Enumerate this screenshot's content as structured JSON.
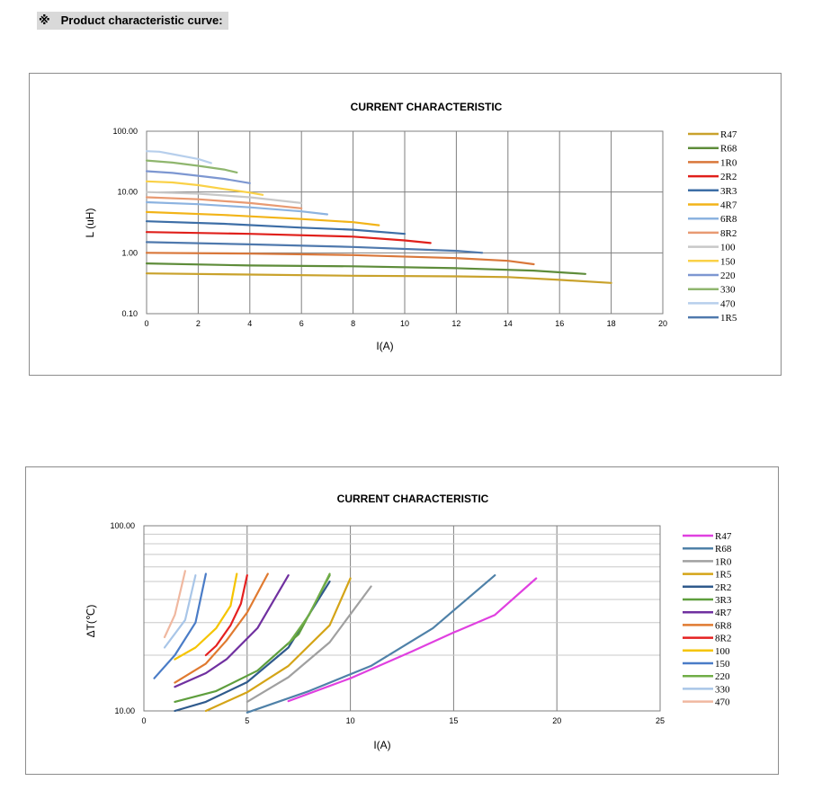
{
  "header": {
    "mark": "※",
    "title": "Product characteristic curve:"
  },
  "chart_data": [
    {
      "type": "line",
      "title": "CURRENT CHARACTERISTIC",
      "xlabel": "I(A)",
      "ylabel": "L (uH)",
      "xlim": [
        0,
        20
      ],
      "ylim": [
        0.1,
        100
      ],
      "yscale": "log",
      "x_ticks": [
        "0",
        "2",
        "4",
        "6",
        "8",
        "10",
        "12",
        "14",
        "16",
        "18",
        "20"
      ],
      "y_ticks": [
        "0.10",
        "1.00",
        "10.00",
        "100.00"
      ],
      "grid": true,
      "legend_position": "right",
      "series": [
        {
          "name": "R47",
          "color": "#c9a22c",
          "points": [
            [
              0,
              0.46
            ],
            [
              4,
              0.44
            ],
            [
              8,
              0.42
            ],
            [
              12,
              0.41
            ],
            [
              14,
              0.4
            ],
            [
              16,
              0.36
            ],
            [
              18,
              0.32
            ]
          ]
        },
        {
          "name": "R68",
          "color": "#5e8c3a",
          "points": [
            [
              0,
              0.67
            ],
            [
              4,
              0.62
            ],
            [
              8,
              0.6
            ],
            [
              12,
              0.56
            ],
            [
              15,
              0.51
            ],
            [
              17,
              0.45
            ]
          ]
        },
        {
          "name": "1R0",
          "color": "#d9773a",
          "points": [
            [
              0,
              1.0
            ],
            [
              4,
              0.97
            ],
            [
              8,
              0.92
            ],
            [
              12,
              0.82
            ],
            [
              14,
              0.74
            ],
            [
              15,
              0.65
            ]
          ]
        },
        {
          "name": "2R2",
          "color": "#e0201b",
          "points": [
            [
              0,
              2.2
            ],
            [
              4,
              2.05
            ],
            [
              8,
              1.85
            ],
            [
              10,
              1.6
            ],
            [
              11,
              1.45
            ]
          ]
        },
        {
          "name": "3R3",
          "color": "#3d6ea6",
          "points": [
            [
              0,
              3.3
            ],
            [
              3,
              3.0
            ],
            [
              6,
              2.6
            ],
            [
              8,
              2.4
            ],
            [
              10,
              2.05
            ]
          ]
        },
        {
          "name": "4R7",
          "color": "#f2b418",
          "points": [
            [
              0,
              4.7
            ],
            [
              3,
              4.2
            ],
            [
              6,
              3.6
            ],
            [
              8,
              3.2
            ],
            [
              9,
              2.85
            ]
          ]
        },
        {
          "name": "6R8",
          "color": "#8cb3e0",
          "points": [
            [
              0,
              6.8
            ],
            [
              2,
              6.3
            ],
            [
              4,
              5.6
            ],
            [
              6,
              4.8
            ],
            [
              7,
              4.3
            ]
          ]
        },
        {
          "name": "8R2",
          "color": "#e89a72",
          "points": [
            [
              0,
              8.2
            ],
            [
              2,
              7.6
            ],
            [
              4,
              6.6
            ],
            [
              6,
              5.4
            ]
          ]
        },
        {
          "name": "100",
          "color": "#c8c8c8",
          "points": [
            [
              0,
              10.0
            ],
            [
              2,
              9.4
            ],
            [
              4,
              8.2
            ],
            [
              6,
              6.6
            ]
          ]
        },
        {
          "name": "150",
          "color": "#fad147",
          "points": [
            [
              0,
              15.0
            ],
            [
              1,
              14.4
            ],
            [
              2,
              13.0
            ],
            [
              3,
              11.2
            ],
            [
              4,
              9.8
            ],
            [
              4.5,
              9.0
            ]
          ]
        },
        {
          "name": "220",
          "color": "#7d97d1",
          "points": [
            [
              0,
              22.0
            ],
            [
              1,
              20.6
            ],
            [
              2,
              18.5
            ],
            [
              3,
              16.5
            ],
            [
              4,
              14.0
            ]
          ]
        },
        {
          "name": "330",
          "color": "#8fb66e",
          "points": [
            [
              0,
              33.0
            ],
            [
              1,
              30.5
            ],
            [
              2,
              27.0
            ],
            [
              3,
              23.5
            ],
            [
              3.5,
              21.0
            ]
          ]
        },
        {
          "name": "470",
          "color": "#b7cfec",
          "points": [
            [
              0,
              47.0
            ],
            [
              0.5,
              46.0
            ],
            [
              1,
              42.0
            ],
            [
              2,
              35.0
            ],
            [
              2.5,
              30.0
            ]
          ]
        },
        {
          "name": "1R5",
          "color": "#4f79ad",
          "points": [
            [
              0,
              1.5
            ],
            [
              4,
              1.38
            ],
            [
              8,
              1.25
            ],
            [
              12,
              1.08
            ],
            [
              13,
              1.0
            ]
          ]
        }
      ]
    },
    {
      "type": "line",
      "title": "CURRENT CHARACTERISTIC",
      "xlabel": "I(A)",
      "ylabel": "ΔT(℃)",
      "xlim": [
        0,
        25
      ],
      "ylim": [
        10,
        100
      ],
      "yscale": "log",
      "x_ticks": [
        "0",
        "5",
        "10",
        "15",
        "20",
        "25"
      ],
      "y_ticks": [
        "10.00",
        "100.00"
      ],
      "grid": true,
      "legend_position": "right",
      "series": [
        {
          "name": "R47",
          "color": "#e040e0",
          "points": [
            [
              7,
              11.3
            ],
            [
              10,
              15
            ],
            [
              13,
              21
            ],
            [
              15,
              26.5
            ],
            [
              17,
              33
            ],
            [
              19,
              52
            ]
          ]
        },
        {
          "name": "R68",
          "color": "#4f81a8",
          "points": [
            [
              5,
              9.8
            ],
            [
              8,
              12.8
            ],
            [
              11,
              17.5
            ],
            [
              14,
              28
            ],
            [
              17,
              54
            ]
          ]
        },
        {
          "name": "1R0",
          "color": "#a0a0a0",
          "points": [
            [
              5,
              11.2
            ],
            [
              7,
              15.2
            ],
            [
              9,
              23.5
            ],
            [
              11,
              47
            ]
          ]
        },
        {
          "name": "1R5",
          "color": "#d4a417",
          "points": [
            [
              3,
              10
            ],
            [
              5,
              12.6
            ],
            [
              7,
              17.5
            ],
            [
              9,
              29
            ],
            [
              10,
              52
            ]
          ]
        },
        {
          "name": "2R2",
          "color": "#2f5a8c",
          "points": [
            [
              1.5,
              10
            ],
            [
              3,
              11.2
            ],
            [
              5,
              14.3
            ],
            [
              7,
              22
            ],
            [
              9,
              50
            ]
          ]
        },
        {
          "name": "3R3",
          "color": "#5e9e3d",
          "points": [
            [
              1.5,
              11.2
            ],
            [
              3.5,
              12.8
            ],
            [
              5.5,
              16.5
            ],
            [
              7.5,
              26
            ],
            [
              9,
              54
            ]
          ]
        },
        {
          "name": "4R7",
          "color": "#7030a0",
          "points": [
            [
              1.5,
              13.5
            ],
            [
              3,
              16
            ],
            [
              4,
              19
            ],
            [
              5.5,
              28
            ],
            [
              7,
              54
            ]
          ]
        },
        {
          "name": "6R8",
          "color": "#e07a30",
          "points": [
            [
              1.5,
              14.2
            ],
            [
              3,
              18
            ],
            [
              4,
              24
            ],
            [
              5,
              34
            ],
            [
              6,
              55
            ]
          ]
        },
        {
          "name": "8R2",
          "color": "#e52020",
          "points": [
            [
              3,
              20
            ],
            [
              3.5,
              22.5
            ],
            [
              4.2,
              29
            ],
            [
              4.7,
              38
            ],
            [
              5,
              54
            ]
          ]
        },
        {
          "name": "100",
          "color": "#f5c400",
          "points": [
            [
              1.5,
              19
            ],
            [
              2.5,
              22
            ],
            [
              3.5,
              28
            ],
            [
              4.2,
              37
            ],
            [
              4.5,
              55
            ]
          ]
        },
        {
          "name": "150",
          "color": "#4a7cc7",
          "points": [
            [
              0.5,
              15
            ],
            [
              1.5,
              20
            ],
            [
              2.5,
              30
            ],
            [
              3,
              55
            ]
          ]
        },
        {
          "name": "220",
          "color": "#70ad47",
          "points": [
            [
              7,
              23
            ],
            [
              8,
              33
            ],
            [
              9,
              55
            ]
          ]
        },
        {
          "name": "330",
          "color": "#a9c6e8",
          "points": [
            [
              1,
              22
            ],
            [
              2,
              31
            ],
            [
              2.5,
              54
            ]
          ]
        },
        {
          "name": "470",
          "color": "#f0b8a0",
          "points": [
            [
              1,
              25
            ],
            [
              1.5,
              33
            ],
            [
              2,
              57
            ]
          ]
        }
      ]
    }
  ]
}
